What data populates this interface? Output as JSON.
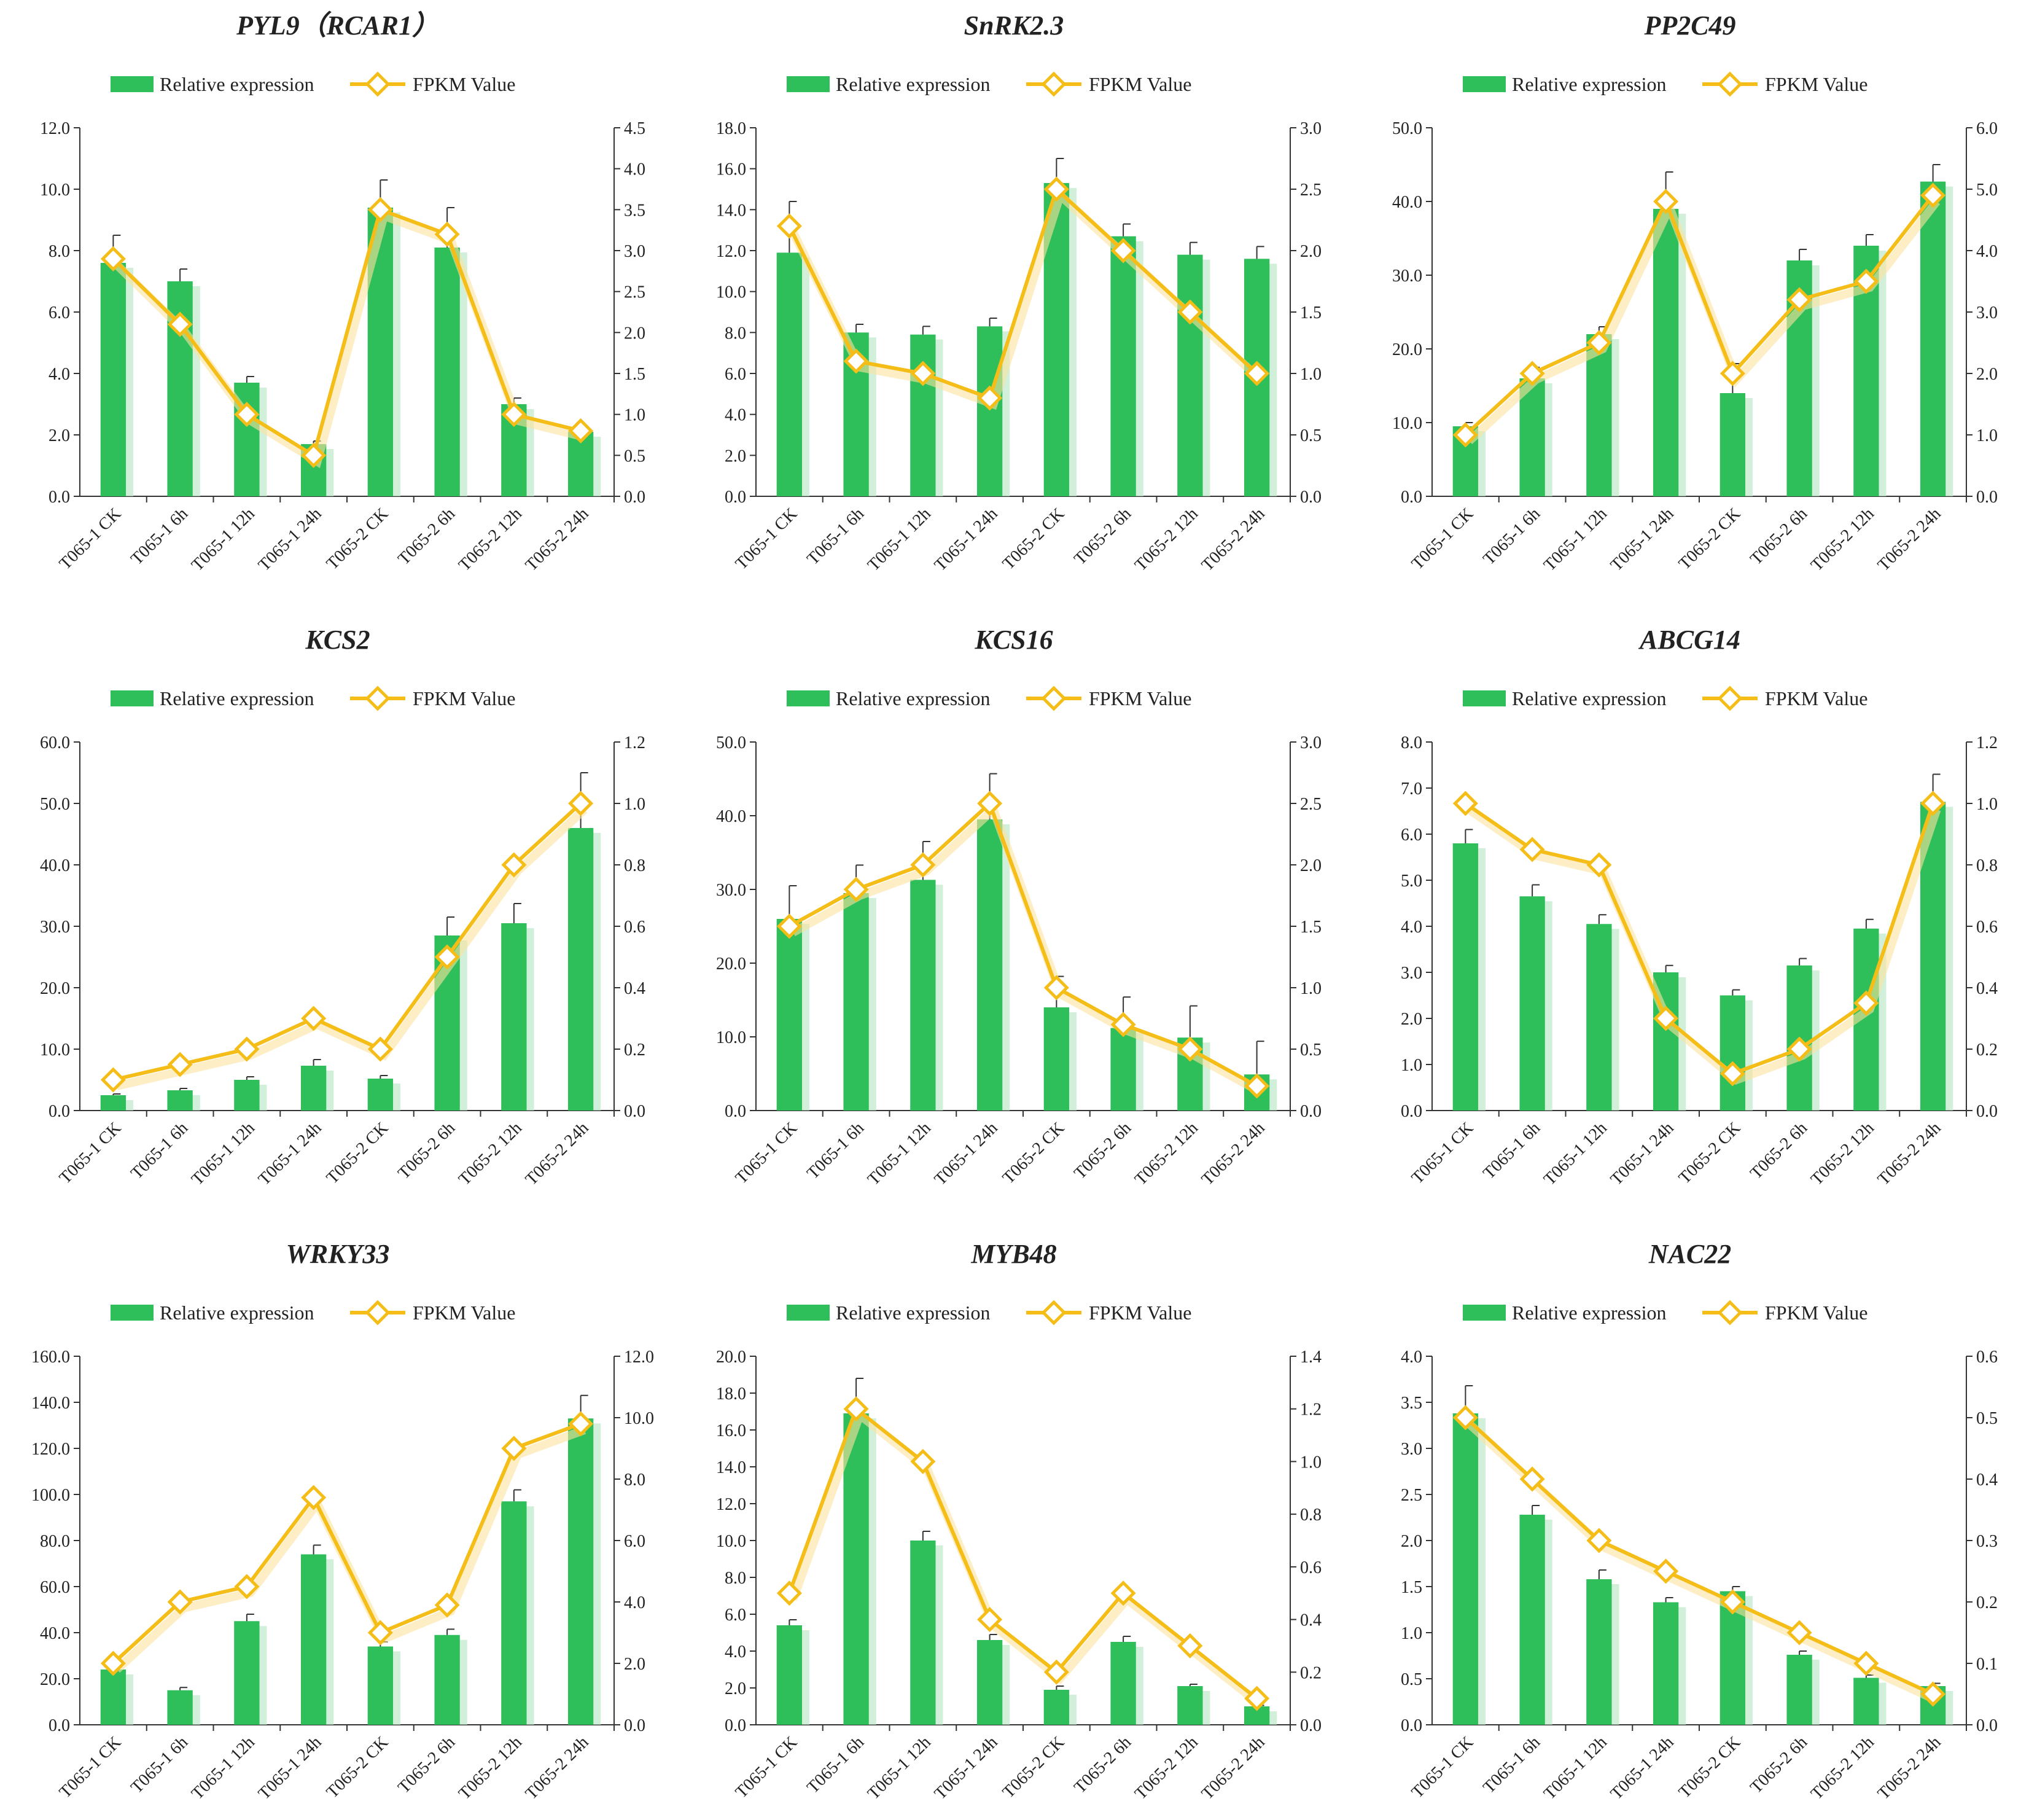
{
  "legend_labels": {
    "bar": "Relative expression",
    "line": "FPKM Value"
  },
  "colors": {
    "bar": "#2fbf5a",
    "bar_shadow": "#bfeac9",
    "line": "#f5bd17",
    "marker_fill": "#ffffff",
    "axis": "#333333",
    "text": "#222222"
  },
  "chart_data": [
    {
      "type": "bar+line",
      "title": "PYL9（RCAR1）",
      "categories": [
        "T065-1 CK",
        "T065-1 6h",
        "T065-1 12h",
        "T065-1 24h",
        "T065-2 CK",
        "T065-2 6h",
        "T065-2 12h",
        "T065-2 24h"
      ],
      "series": [
        {
          "name": "Relative expression",
          "axis": "left",
          "values": [
            7.6,
            7.0,
            3.7,
            1.7,
            9.4,
            8.1,
            3.0,
            2.1
          ],
          "errors": [
            0.9,
            0.4,
            0.2,
            0.1,
            0.9,
            1.3,
            0.2,
            0.1
          ]
        },
        {
          "name": "FPKM Value",
          "axis": "right",
          "values": [
            2.9,
            2.1,
            1.0,
            0.5,
            3.5,
            3.2,
            1.0,
            0.8
          ]
        }
      ],
      "ylim": [
        0,
        12
      ],
      "y_step": 2,
      "y_decimals": 1,
      "y2lim": [
        0,
        4.5
      ],
      "y2_step": 0.5,
      "y2_decimals": 1,
      "yticks": [
        "0.0",
        "2.0",
        "4.0",
        "6.0",
        "8.0",
        "10.0",
        "12.0"
      ],
      "y2ticks": [
        "0.0",
        "0.5",
        "1.0",
        "1.5",
        "2.0",
        "2.5",
        "3.0",
        "3.5",
        "4.0",
        "4.5"
      ]
    },
    {
      "type": "bar+line",
      "title": "SnRK2.3",
      "categories": [
        "T065-1 CK",
        "T065-1 6h",
        "T065-1 12h",
        "T065-1 24h",
        "T065-2 CK",
        "T065-2 6h",
        "T065-2 12h",
        "T065-2 24h"
      ],
      "series": [
        {
          "name": "Relative expression",
          "axis": "left",
          "values": [
            11.9,
            8.0,
            7.9,
            8.3,
            15.3,
            12.7,
            11.8,
            11.6
          ],
          "errors": [
            2.5,
            0.4,
            0.4,
            0.4,
            1.2,
            0.6,
            0.6,
            0.6
          ]
        },
        {
          "name": "FPKM Value",
          "axis": "right",
          "values": [
            2.2,
            1.1,
            1.0,
            0.8,
            2.5,
            2.0,
            1.5,
            1.0
          ]
        }
      ],
      "ylim": [
        0,
        18
      ],
      "y_step": 2,
      "y_decimals": 1,
      "y2lim": [
        0,
        3
      ],
      "y2_step": 0.5,
      "y2_decimals": 1,
      "yticks": [
        "0.0",
        "2.0",
        "4.0",
        "6.0",
        "8.0",
        "10.0",
        "12.0",
        "14.0",
        "16.0",
        "18.0"
      ],
      "y2ticks": [
        "0.0",
        "0.5",
        "1.0",
        "1.5",
        "2.0",
        "2.5",
        "3.0"
      ]
    },
    {
      "type": "bar+line",
      "title": "PP2C49",
      "categories": [
        "T065-1 CK",
        "T065-1 6h",
        "T065-1 12h",
        "T065-1 24h",
        "T065-2 CK",
        "T065-2 6h",
        "T065-2 12h",
        "T065-2 24h"
      ],
      "series": [
        {
          "name": "Relative expression",
          "axis": "left",
          "values": [
            9.5,
            16.0,
            22.0,
            39.0,
            14.0,
            32.0,
            34.0,
            42.7
          ],
          "errors": [
            0.5,
            1.5,
            1.0,
            5.0,
            4.0,
            1.5,
            1.5,
            2.3
          ]
        },
        {
          "name": "FPKM Value",
          "axis": "right",
          "values": [
            1.0,
            2.0,
            2.5,
            4.8,
            2.0,
            3.2,
            3.5,
            4.9
          ]
        }
      ],
      "ylim": [
        0,
        50
      ],
      "y_step": 10,
      "y_decimals": 1,
      "y2lim": [
        0,
        6
      ],
      "y2_step": 1,
      "y2_decimals": 1,
      "yticks": [
        "0.0",
        "10.0",
        "20.0",
        "30.0",
        "40.0",
        "50.0"
      ],
      "y2ticks": [
        "0.0",
        "1.0",
        "2.0",
        "3.0",
        "4.0",
        "5.0",
        "6.0"
      ]
    },
    {
      "type": "bar+line",
      "title": "KCS2",
      "categories": [
        "T065-1 CK",
        "T065-1 6h",
        "T065-1 12h",
        "T065-1 24h",
        "T065-2 CK",
        "T065-2 6h",
        "T065-2 12h",
        "T065-2 24h"
      ],
      "series": [
        {
          "name": "Relative expression",
          "axis": "left",
          "values": [
            2.5,
            3.3,
            5.0,
            7.3,
            5.2,
            28.5,
            30.5,
            46.0
          ],
          "errors": [
            0.2,
            0.3,
            0.5,
            1.0,
            0.5,
            3.0,
            3.2,
            9.0
          ]
        },
        {
          "name": "FPKM Value",
          "axis": "right",
          "values": [
            0.1,
            0.15,
            0.2,
            0.3,
            0.2,
            0.5,
            0.8,
            1.0
          ]
        }
      ],
      "ylim": [
        0,
        60
      ],
      "y_step": 10,
      "y_decimals": 1,
      "y2lim": [
        0,
        1.2
      ],
      "y2_step": 0.2,
      "y2_decimals": 1,
      "yticks": [
        "0.0",
        "10.0",
        "20.0",
        "30.0",
        "40.0",
        "50.0",
        "60.0"
      ],
      "y2ticks": [
        "0.0",
        "0.2",
        "0.4",
        "0.6",
        "0.8",
        "1.0",
        "1.2"
      ]
    },
    {
      "type": "bar+line",
      "title": "KCS16",
      "categories": [
        "T065-1 CK",
        "T065-1 6h",
        "T065-1 12h",
        "T065-1 24h",
        "T065-2 CK",
        "T065-2 6h",
        "T065-2 12h",
        "T065-2 24h"
      ],
      "series": [
        {
          "name": "Relative expression",
          "axis": "left",
          "values": [
            26.0,
            29.5,
            31.3,
            39.5,
            14.0,
            11.2,
            9.9,
            4.9
          ],
          "errors": [
            4.5,
            3.8,
            5.2,
            6.2,
            4.2,
            4.2,
            4.3,
            4.5
          ]
        },
        {
          "name": "FPKM Value",
          "axis": "right",
          "values": [
            1.5,
            1.8,
            2.0,
            2.5,
            1.0,
            0.7,
            0.5,
            0.2
          ]
        }
      ],
      "ylim": [
        0,
        50
      ],
      "y_step": 10,
      "y_decimals": 1,
      "y2lim": [
        0,
        3
      ],
      "y2_step": 0.5,
      "y2_decimals": 1,
      "yticks": [
        "0.0",
        "10.0",
        "20.0",
        "30.0",
        "40.0",
        "50.0"
      ],
      "y2ticks": [
        "0.0",
        "0.5",
        "1.0",
        "1.5",
        "2.0",
        "2.5",
        "3.0"
      ]
    },
    {
      "type": "bar+line",
      "title": "ABCG14",
      "categories": [
        "T065-1 CK",
        "T065-1 6h",
        "T065-1 12h",
        "T065-1 24h",
        "T065-2 CK",
        "T065-2 6h",
        "T065-2 12h",
        "T065-2 24h"
      ],
      "series": [
        {
          "name": "Relative expression",
          "axis": "left",
          "values": [
            5.8,
            4.65,
            4.05,
            3.0,
            2.5,
            3.15,
            3.95,
            6.7
          ],
          "errors": [
            0.3,
            0.25,
            0.2,
            0.15,
            0.12,
            0.15,
            0.2,
            0.6
          ]
        },
        {
          "name": "FPKM Value",
          "axis": "right",
          "values": [
            1.0,
            0.85,
            0.8,
            0.3,
            0.12,
            0.2,
            0.35,
            1.0
          ]
        }
      ],
      "ylim": [
        0,
        8
      ],
      "y_step": 1,
      "y_decimals": 1,
      "y2lim": [
        0,
        1.2
      ],
      "y2_step": 0.2,
      "y2_decimals": 1,
      "yticks": [
        "0.0",
        "1.0",
        "2.0",
        "3.0",
        "4.0",
        "5.0",
        "6.0",
        "7.0",
        "8.0"
      ],
      "y2ticks": [
        "0.0",
        "0.2",
        "0.4",
        "0.6",
        "0.8",
        "1.0",
        "1.2"
      ]
    },
    {
      "type": "bar+line",
      "title": "WRKY33",
      "categories": [
        "T065-1 CK",
        "T065-1 6h",
        "T065-1 12h",
        "T065-1 24h",
        "T065-2 CK",
        "T065-2 6h",
        "T065-2 12h",
        "T065-2 24h"
      ],
      "series": [
        {
          "name": "Relative expression",
          "axis": "left",
          "values": [
            24.0,
            15.0,
            45.0,
            74.0,
            34.0,
            39.0,
            97.0,
            133.0
          ],
          "errors": [
            1.5,
            1.2,
            3.0,
            4.0,
            2.0,
            2.5,
            5.0,
            10.0
          ]
        },
        {
          "name": "FPKM Value",
          "axis": "right",
          "values": [
            2.0,
            4.0,
            4.5,
            7.4,
            3.0,
            3.9,
            9.0,
            9.8
          ]
        }
      ],
      "ylim": [
        0,
        160
      ],
      "y_step": 20,
      "y_decimals": 1,
      "y2lim": [
        0,
        12
      ],
      "y2_step": 2,
      "y2_decimals": 1,
      "yticks": [
        "0.0",
        "20.0",
        "40.0",
        "60.0",
        "80.0",
        "100.0",
        "120.0",
        "140.0",
        "160.0"
      ],
      "y2ticks": [
        "0.0",
        "2.0",
        "4.0",
        "6.0",
        "8.0",
        "10.0",
        "12.0"
      ]
    },
    {
      "type": "bar+line",
      "title": "MYB48",
      "categories": [
        "T065-1 CK",
        "T065-1 6h",
        "T065-1 12h",
        "T065-1 24h",
        "T065-2 CK",
        "T065-2 6h",
        "T065-2 12h",
        "T065-2 24h"
      ],
      "series": [
        {
          "name": "Relative expression",
          "axis": "left",
          "values": [
            5.4,
            16.9,
            10.0,
            4.6,
            1.9,
            4.5,
            2.1,
            1.0
          ],
          "errors": [
            0.3,
            1.9,
            0.5,
            0.3,
            0.2,
            0.3,
            0.1,
            0.05
          ]
        },
        {
          "name": "FPKM Value",
          "axis": "right",
          "values": [
            0.5,
            1.2,
            1.0,
            0.4,
            0.2,
            0.5,
            0.3,
            0.1
          ]
        }
      ],
      "ylim": [
        0,
        20
      ],
      "y_step": 2,
      "y_decimals": 1,
      "y2lim": [
        0,
        1.4
      ],
      "y2_step": 0.2,
      "y2_decimals": 1,
      "yticks": [
        "0.0",
        "2.0",
        "4.0",
        "6.0",
        "8.0",
        "10.0",
        "12.0",
        "14.0",
        "16.0",
        "18.0",
        "20.0"
      ],
      "y2ticks": [
        "0.0",
        "0.2",
        "0.4",
        "0.6",
        "0.8",
        "1.0",
        "1.2",
        "1.4"
      ]
    },
    {
      "type": "bar+line",
      "title": "NAC22",
      "categories": [
        "T065-1 CK",
        "T065-1 6h",
        "T065-1 12h",
        "T065-1 24h",
        "T065-2 CK",
        "T065-2 6h",
        "T065-2 12h",
        "T065-2 24h"
      ],
      "series": [
        {
          "name": "Relative expression",
          "axis": "left",
          "values": [
            3.38,
            2.28,
            1.58,
            1.33,
            1.45,
            0.76,
            0.51,
            0.42
          ],
          "errors": [
            0.3,
            0.1,
            0.1,
            0.05,
            0.05,
            0.04,
            0.03,
            0.03
          ]
        },
        {
          "name": "FPKM Value",
          "axis": "right",
          "values": [
            0.5,
            0.4,
            0.3,
            0.25,
            0.2,
            0.15,
            0.1,
            0.05
          ]
        }
      ],
      "ylim": [
        0,
        4
      ],
      "y_step": 0.5,
      "y_decimals": 1,
      "y2lim": [
        0,
        0.6
      ],
      "y2_step": 0.1,
      "y2_decimals": 1,
      "yticks": [
        "0.0",
        "0.5",
        "1.0",
        "1.5",
        "2.0",
        "2.5",
        "3.0",
        "3.5",
        "4.0"
      ],
      "y2ticks": [
        "0.0",
        "0.1",
        "0.2",
        "0.3",
        "0.4",
        "0.5",
        "0.6"
      ]
    }
  ]
}
